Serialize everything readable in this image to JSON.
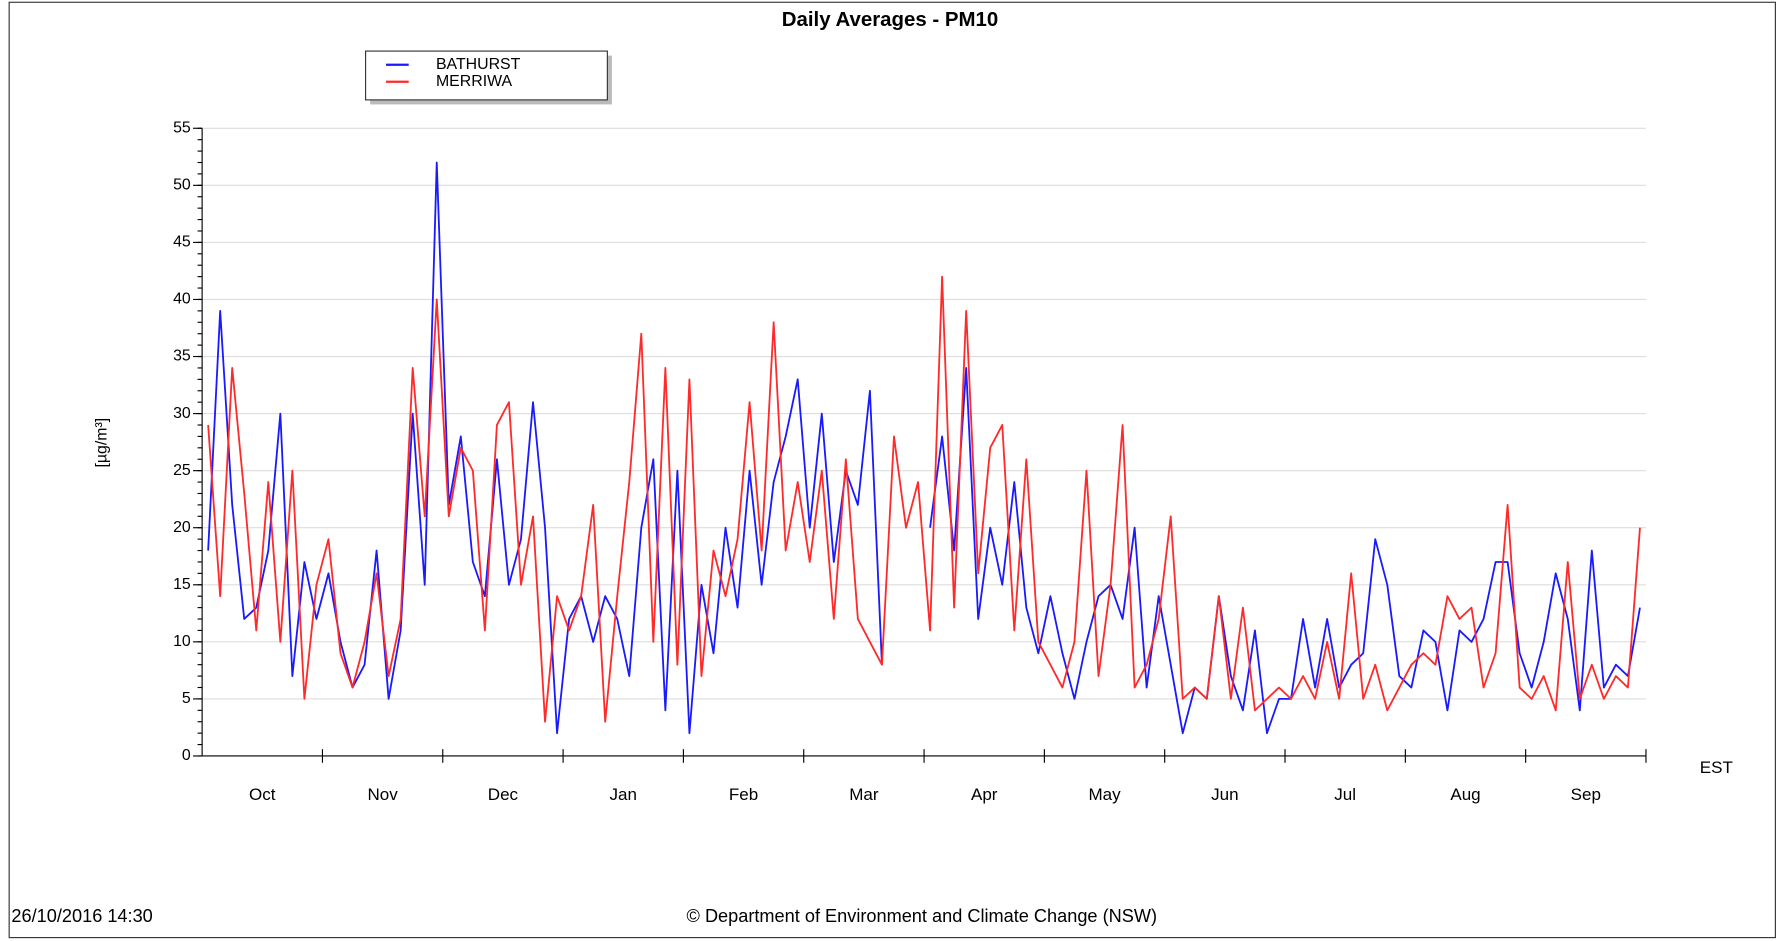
{
  "chart_data": {
    "type": "line",
    "title": "Daily Averages - PM10",
    "y_label": "[µg/m³]",
    "x_unit": "EST",
    "timestamp": "26/10/2016 14:30",
    "footer": "© Department of Environment and Climate Change (NSW)",
    "months": [
      "Oct",
      "Nov",
      "Dec",
      "Jan",
      "Feb",
      "Mar",
      "Apr",
      "May",
      "Jun",
      "Jul",
      "Aug",
      "Sep"
    ],
    "xlim": [
      0,
      12
    ],
    "x": [
      0.05,
      0.15,
      0.25,
      0.35,
      0.45,
      0.55,
      0.65,
      0.75,
      0.85,
      0.95,
      1.05,
      1.15,
      1.25,
      1.35,
      1.45,
      1.55,
      1.65,
      1.75,
      1.85,
      1.95,
      2.05,
      2.15,
      2.25,
      2.35,
      2.45,
      2.55,
      2.65,
      2.75,
      2.85,
      2.95,
      3.05,
      3.15,
      3.25,
      3.35,
      3.45,
      3.55,
      3.65,
      3.75,
      3.85,
      3.95,
      4.05,
      4.15,
      4.25,
      4.35,
      4.45,
      4.55,
      4.65,
      4.75,
      4.85,
      4.95,
      5.05,
      5.15,
      5.25,
      5.35,
      5.45,
      5.55,
      5.65,
      5.75,
      5.85,
      5.95,
      6.05,
      6.15,
      6.25,
      6.35,
      6.45,
      6.55,
      6.65,
      6.75,
      6.85,
      6.95,
      7.05,
      7.15,
      7.25,
      7.35,
      7.45,
      7.55,
      7.65,
      7.75,
      7.85,
      7.95,
      8.05,
      8.15,
      8.25,
      8.35,
      8.45,
      8.55,
      8.65,
      8.75,
      8.85,
      8.95,
      9.05,
      9.15,
      9.25,
      9.35,
      9.45,
      9.55,
      9.65,
      9.75,
      9.85,
      9.95,
      10.05,
      10.15,
      10.25,
      10.35,
      10.45,
      10.55,
      10.65,
      10.75,
      10.85,
      10.95,
      11.05,
      11.15,
      11.25,
      11.35,
      11.45,
      11.55,
      11.65,
      11.75,
      11.85,
      11.95
    ],
    "ylim": [
      0,
      55
    ],
    "yticks": [
      0,
      5,
      10,
      15,
      20,
      25,
      30,
      35,
      40,
      45,
      50,
      55
    ],
    "grid": true,
    "series": [
      {
        "name": "BATHURST",
        "color": "#1a1aff",
        "values": [
          18,
          39,
          22,
          12,
          13,
          18,
          30,
          7,
          17,
          12,
          16,
          10,
          6,
          8,
          18,
          5,
          11,
          30,
          15,
          52,
          22,
          28,
          17,
          14,
          26,
          15,
          19,
          31,
          20,
          2,
          12,
          14,
          10,
          14,
          12,
          7,
          20,
          26,
          4,
          25,
          2,
          15,
          9,
          20,
          13,
          25,
          15,
          24,
          28,
          33,
          20,
          30,
          17,
          25,
          22,
          32,
          8,
          null,
          null,
          null,
          20,
          28,
          18,
          34,
          12,
          20,
          15,
          24,
          13,
          9,
          14,
          9,
          5,
          10,
          14,
          15,
          12,
          20,
          6,
          14,
          8,
          2,
          6,
          5,
          14,
          7,
          4,
          11,
          2,
          5,
          5,
          12,
          6,
          12,
          6,
          8,
          9,
          19,
          15,
          7,
          6,
          11,
          10,
          4,
          11,
          10,
          12,
          17,
          17,
          9,
          6,
          10,
          16,
          12,
          4,
          18,
          6,
          8,
          7,
          13
        ]
      },
      {
        "name": "MERRIWA",
        "color": "#ff2a2a",
        "values": [
          29,
          14,
          34,
          23,
          11,
          24,
          10,
          25,
          5,
          15,
          19,
          9,
          6,
          10,
          16,
          7,
          12,
          34,
          21,
          40,
          21,
          27,
          25,
          11,
          29,
          31,
          15,
          21,
          3,
          14,
          11,
          14,
          22,
          3,
          14,
          24,
          37,
          10,
          34,
          8,
          33,
          7,
          18,
          14,
          19,
          31,
          18,
          38,
          18,
          24,
          17,
          25,
          12,
          26,
          12,
          10,
          8,
          28,
          20,
          24,
          11,
          42,
          13,
          39,
          16,
          27,
          29,
          11,
          26,
          10,
          8,
          6,
          10,
          25,
          7,
          15,
          29,
          6,
          8,
          12,
          21,
          5,
          6,
          5,
          14,
          5,
          13,
          4,
          5,
          6,
          5,
          7,
          5,
          10,
          5,
          16,
          5,
          8,
          4,
          6,
          8,
          9,
          8,
          14,
          12,
          13,
          6,
          9,
          22,
          6,
          5,
          7,
          4,
          17,
          5,
          8,
          5,
          7,
          6,
          20
        ]
      }
    ]
  }
}
